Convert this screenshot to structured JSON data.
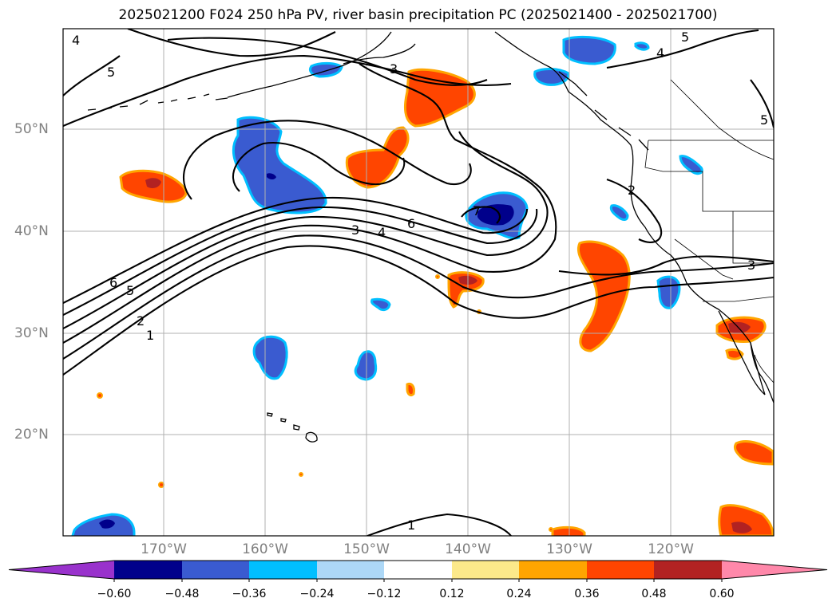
{
  "title": "2025021200 F024 250 hPa PV, river basin precipitation PC (2025021400 - 2025021700)",
  "map": {
    "lat_labels": [
      "50°N",
      "40°N",
      "30°N",
      "20°N"
    ],
    "lon_labels": [
      "170°W",
      "160°W",
      "150°W",
      "140°W",
      "130°W",
      "120°W"
    ],
    "contour_labels": [
      "4",
      "5",
      "3",
      "5",
      "4",
      "5",
      "3",
      "4",
      "6",
      "7",
      "2",
      "6",
      "5",
      "2",
      "1",
      "3",
      "1"
    ]
  },
  "colorbar": {
    "ticks": [
      "−0.60",
      "−0.48",
      "−0.36",
      "−0.24",
      "−0.12",
      "0.12",
      "0.24",
      "0.36",
      "0.48",
      "0.60"
    ],
    "colors": [
      "#9932cc",
      "#00008b",
      "#3a5bd0",
      "#00bfff",
      "#add8f7",
      "#ffffff",
      "#fce98a",
      "#ffa500",
      "#ff4500",
      "#b22222",
      "#ff88aa"
    ]
  }
}
